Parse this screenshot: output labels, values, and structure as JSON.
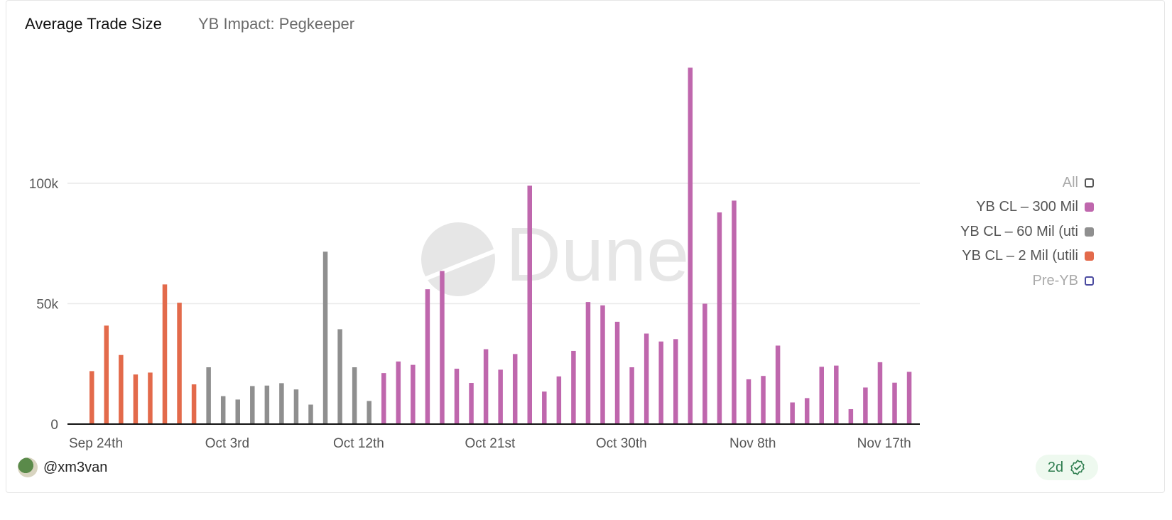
{
  "header": {
    "title": "Average Trade Size",
    "subtitle": "YB Impact: Pegkeeper"
  },
  "footer": {
    "author": "@xm3van",
    "freshness": "2d",
    "freshness_icon": "verified-badge-icon"
  },
  "watermark": "Dune",
  "colors": {
    "orange": "#e36a4b",
    "gray": "#8f8f8f",
    "purple": "#bf67ad",
    "prevb": "#4b4ba0",
    "grid": "#e9e9e9"
  },
  "chart_data": {
    "type": "bar",
    "title": "Average Trade Size",
    "subtitle": "YB Impact: Pegkeeper",
    "xlabel": "",
    "ylabel": "",
    "ylim": [
      0,
      150000
    ],
    "yticks": [
      {
        "value": 0,
        "label": "0"
      },
      {
        "value": 50000,
        "label": "50k"
      },
      {
        "value": 100000,
        "label": "100k"
      }
    ],
    "xticks": [
      "Sep 24th",
      "Oct 3rd",
      "Oct 12th",
      "Oct 21st",
      "Oct 30th",
      "Nov 8th",
      "Nov 17th"
    ],
    "grid": true,
    "legend_placement": "right",
    "legend": [
      {
        "name": "All",
        "color": "#555555",
        "hollow": true,
        "dim": true
      },
      {
        "name": "YB CL – 300 Mil",
        "color": "#bf67ad"
      },
      {
        "name": "YB CL – 60 Mil (uti",
        "color": "#8f8f8f"
      },
      {
        "name": "YB CL – 2 Mil (utili",
        "color": "#e36a4b"
      },
      {
        "name": "Pre-YB",
        "color": "#4b4ba0",
        "hollow": true,
        "dim": true
      }
    ],
    "series": [
      {
        "name": "YB CL – 2 Mil (utili",
        "color": "#e36a4b",
        "start": "2024-09-24",
        "values": [
          22000,
          40900,
          28700,
          20600,
          21400,
          58000,
          50400,
          16500
        ]
      },
      {
        "name": "YB CL – 60 Mil (uti",
        "color": "#8f8f8f",
        "start": "2024-10-02",
        "values": [
          23600,
          11600,
          10200,
          15800,
          16000,
          17000,
          14400,
          8100,
          71600,
          39400,
          23600,
          9600
        ]
      },
      {
        "name": "YB CL – 300 Mil",
        "color": "#bf67ad",
        "start": "2024-10-14",
        "values": [
          21200,
          26000,
          24600,
          56000,
          63600,
          23000,
          17100,
          31100,
          22600,
          29100,
          99000,
          13500,
          19800,
          30400,
          50700,
          49300,
          42500,
          23600,
          37600,
          34300,
          35300,
          148000,
          50000,
          87900,
          92800,
          18600,
          20000,
          32600,
          9000,
          10800,
          23800,
          24300,
          6200,
          15200,
          25700,
          17200,
          21700
        ]
      }
    ]
  }
}
